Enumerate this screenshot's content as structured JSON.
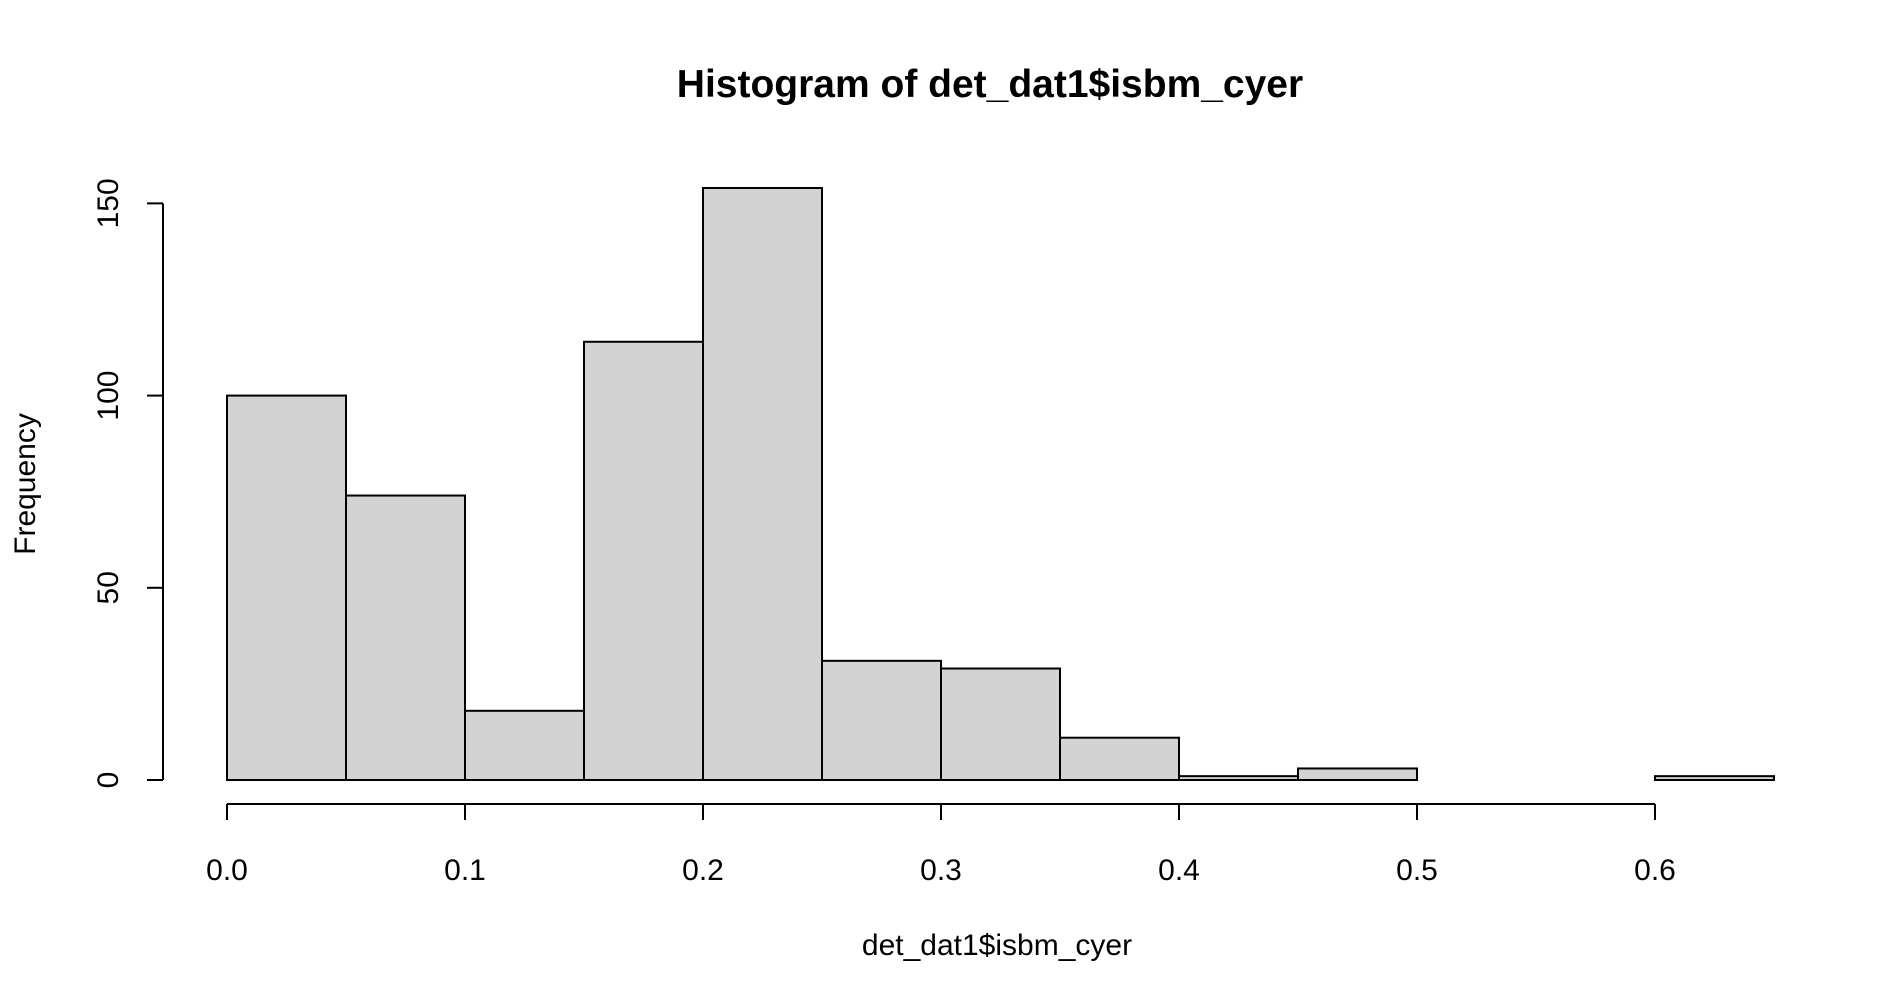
{
  "chart_data": {
    "type": "histogram",
    "title": "Histogram of det_dat1$isbm_cyer",
    "xlabel": "det_dat1$isbm_cyer",
    "ylabel": "Frequency",
    "bin_edges": [
      0.0,
      0.05,
      0.1,
      0.15,
      0.2,
      0.25,
      0.3,
      0.35,
      0.4,
      0.45,
      0.5,
      0.55,
      0.6,
      0.65
    ],
    "counts": [
      100,
      74,
      18,
      114,
      154,
      31,
      29,
      11,
      1,
      3,
      0,
      0,
      1
    ],
    "xlim": [
      0.0,
      0.65
    ],
    "ylim": [
      0,
      154
    ],
    "x_ticks": [
      0.0,
      0.1,
      0.2,
      0.3,
      0.4,
      0.5,
      0.6
    ],
    "x_tick_labels": [
      "0.0",
      "0.1",
      "0.2",
      "0.3",
      "0.4",
      "0.5",
      "0.6"
    ],
    "y_ticks": [
      0,
      50,
      100,
      150
    ],
    "y_tick_labels": [
      "0",
      "50",
      "100",
      "150"
    ],
    "bar_fill": "#d3d3d3",
    "bar_stroke": "#000000",
    "grid": false,
    "legend": "none"
  }
}
